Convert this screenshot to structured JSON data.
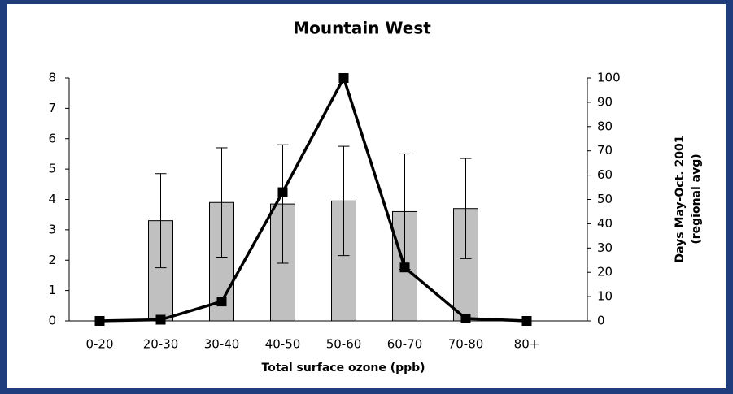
{
  "chart_data": {
    "type": "bar-line",
    "title": "Mountain West",
    "xlabel": "Total surface ozone (ppb)",
    "y2label": [
      "Days May-Oct. 2001",
      "(regional avg)"
    ],
    "categories": [
      "0-20",
      "20-30",
      "30-40",
      "40-50",
      "50-60",
      "60-70",
      "70-80",
      "80+"
    ],
    "series": [
      {
        "type": "bar",
        "color": "#c0c0c0",
        "values": [
          null,
          3.3,
          3.9,
          3.85,
          3.95,
          3.6,
          3.7,
          null
        ],
        "errors": [
          null,
          1.55,
          1.8,
          1.95,
          1.8,
          1.9,
          1.65,
          null
        ]
      },
      {
        "type": "line",
        "axis": "y2",
        "color": "#000000",
        "values": [
          0,
          0.5,
          8,
          53,
          100,
          22,
          1,
          0
        ]
      }
    ],
    "ylim": [
      0,
      8
    ],
    "yticks": [
      0,
      1,
      2,
      3,
      4,
      5,
      6,
      7,
      8
    ],
    "y2lim": [
      0,
      100
    ],
    "y2ticks": [
      0,
      10,
      20,
      30,
      40,
      50,
      60,
      70,
      80,
      90,
      100
    ],
    "grid": false
  }
}
